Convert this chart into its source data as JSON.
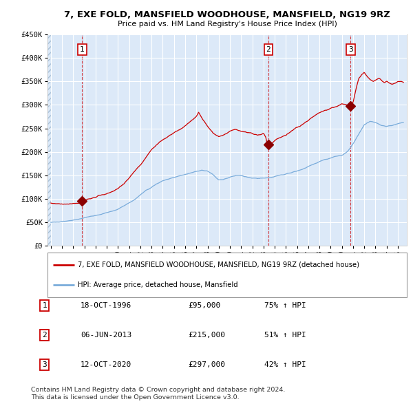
{
  "title": "7, EXE FOLD, MANSFIELD WOODHOUSE, MANSFIELD, NG19 9RZ",
  "subtitle": "Price paid vs. HM Land Registry's House Price Index (HPI)",
  "ylim": [
    0,
    450000
  ],
  "yticks": [
    0,
    50000,
    100000,
    150000,
    200000,
    250000,
    300000,
    350000,
    400000,
    450000
  ],
  "ytick_labels": [
    "£0",
    "£50K",
    "£100K",
    "£150K",
    "£200K",
    "£250K",
    "£300K",
    "£350K",
    "£400K",
    "£450K"
  ],
  "xlim_start": 1993.7,
  "xlim_end": 2025.8,
  "xticks": [
    1994,
    1995,
    1996,
    1997,
    1998,
    1999,
    2000,
    2001,
    2002,
    2003,
    2004,
    2005,
    2006,
    2007,
    2008,
    2009,
    2010,
    2011,
    2012,
    2013,
    2014,
    2015,
    2016,
    2017,
    2018,
    2019,
    2020,
    2021,
    2022,
    2023,
    2024,
    2025
  ],
  "background_color": "#dce9f8",
  "grid_color": "#ffffff",
  "red_line_color": "#cc0000",
  "blue_line_color": "#7aacdb",
  "sale1_date": 1996.8,
  "sale1_price": 95000,
  "sale1_label": "1",
  "sale2_date": 2013.43,
  "sale2_price": 215000,
  "sale2_label": "2",
  "sale3_date": 2020.78,
  "sale3_price": 297000,
  "sale3_label": "3",
  "legend_line1": "7, EXE FOLD, MANSFIELD WOODHOUSE, MANSFIELD, NG19 9RZ (detached house)",
  "legend_line2": "HPI: Average price, detached house, Mansfield",
  "table_rows": [
    {
      "num": "1",
      "date": "18-OCT-1996",
      "price": "£95,000",
      "change": "75% ↑ HPI"
    },
    {
      "num": "2",
      "date": "06-JUN-2013",
      "price": "£215,000",
      "change": "51% ↑ HPI"
    },
    {
      "num": "3",
      "date": "12-OCT-2020",
      "price": "£297,000",
      "change": "42% ↑ HPI"
    }
  ],
  "footer": "Contains HM Land Registry data © Crown copyright and database right 2024.\nThis data is licensed under the Open Government Licence v3.0."
}
